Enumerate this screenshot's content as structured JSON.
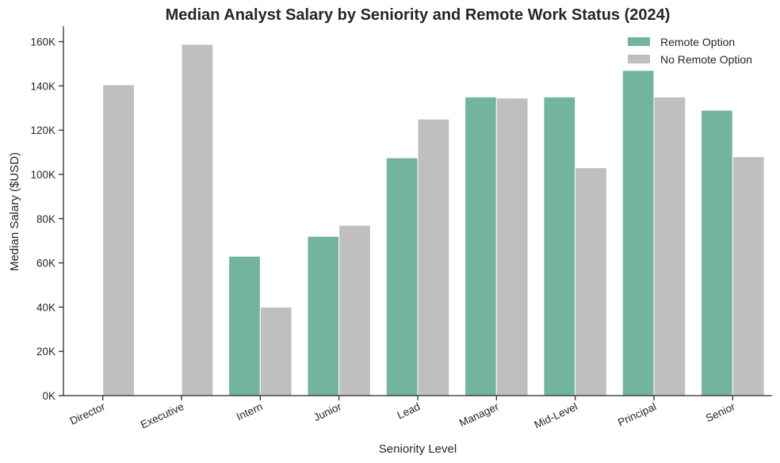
{
  "chart_data": {
    "type": "bar",
    "title": "Median Analyst Salary by Seniority and Remote Work Status (2024)",
    "xlabel": "Seniority Level",
    "ylabel": "Median Salary ($USD)",
    "categories": [
      "Director",
      "Executive",
      "Intern",
      "Junior",
      "Lead",
      "Manager",
      "Mid-Level",
      "Principal",
      "Senior"
    ],
    "series": [
      {
        "name": "Remote Option",
        "color": "#73b49f",
        "values": [
          null,
          null,
          63000,
          72000,
          107500,
          135000,
          135000,
          147000,
          129000
        ]
      },
      {
        "name": "No Remote Option",
        "color": "#bfbfbf",
        "values": [
          140500,
          158800,
          40000,
          77000,
          125000,
          134500,
          103000,
          135000,
          108000
        ]
      }
    ],
    "ylim": [
      0,
      167000
    ],
    "yticks": [
      0,
      20000,
      40000,
      60000,
      80000,
      100000,
      120000,
      140000,
      160000
    ],
    "ytick_labels": [
      "0K",
      "20K",
      "40K",
      "60K",
      "80K",
      "100K",
      "120K",
      "140K",
      "160K"
    ],
    "legend_position": "top-right",
    "grid": false
  }
}
